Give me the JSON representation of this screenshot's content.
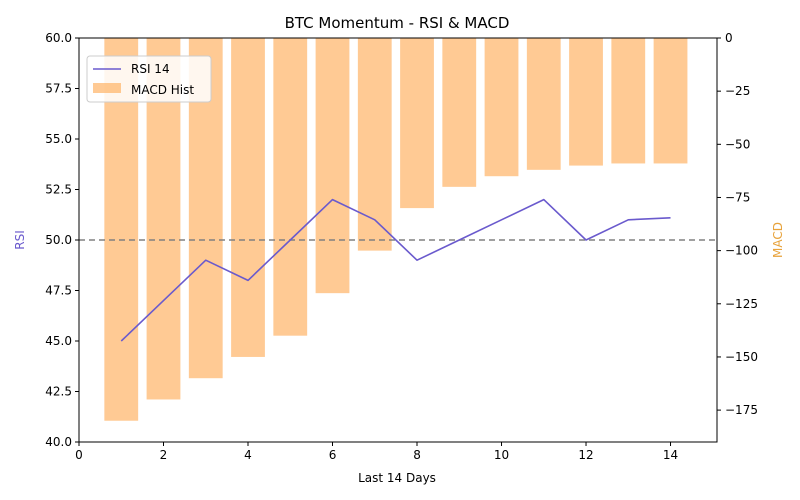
{
  "chart_data": {
    "type": "bar+line",
    "title": "BTC Momentum - RSI & MACD",
    "xlabel": "Last 14 Days",
    "ylabel_left": "RSI",
    "ylabel_right": "MACD",
    "x": [
      1,
      2,
      3,
      4,
      5,
      6,
      7,
      8,
      9,
      10,
      11,
      12,
      13,
      14
    ],
    "xlim": [
      0,
      15.1
    ],
    "xticks": [
      "0",
      "2",
      "4",
      "6",
      "8",
      "10",
      "12",
      "14"
    ],
    "ylim_left": [
      40,
      60
    ],
    "yticks_left": [
      "40.0",
      "42.5",
      "45.0",
      "47.5",
      "50.0",
      "52.5",
      "55.0",
      "57.5",
      "60.0"
    ],
    "ylim_right": [
      -190,
      0
    ],
    "yticks_right": [
      "0",
      "−25",
      "−50",
      "−75",
      "−100",
      "−125",
      "−150",
      "−175"
    ],
    "reference_line": {
      "axis": "left",
      "value": 50,
      "style": "dashed",
      "color": "#808080"
    },
    "series": [
      {
        "name": "RSI 14",
        "kind": "line",
        "axis": "left",
        "color": "#6a5acd",
        "values": [
          45,
          47,
          49,
          48,
          50,
          52,
          51,
          49,
          50,
          51,
          52,
          50,
          51,
          51.1
        ]
      },
      {
        "name": "MACD Hist",
        "kind": "bar",
        "axis": "right",
        "color": "#ffb366",
        "opacity": 0.7,
        "values": [
          -180,
          -170,
          -160,
          -150,
          -140,
          -120,
          -100,
          -80,
          -70,
          -65,
          -62,
          -60,
          -59,
          -59
        ]
      }
    ],
    "legend_position": "upper-left",
    "grid": false
  },
  "colors": {
    "rsi_axis_label": "#6a5acd",
    "macd_axis_label": "#e8a33c"
  }
}
